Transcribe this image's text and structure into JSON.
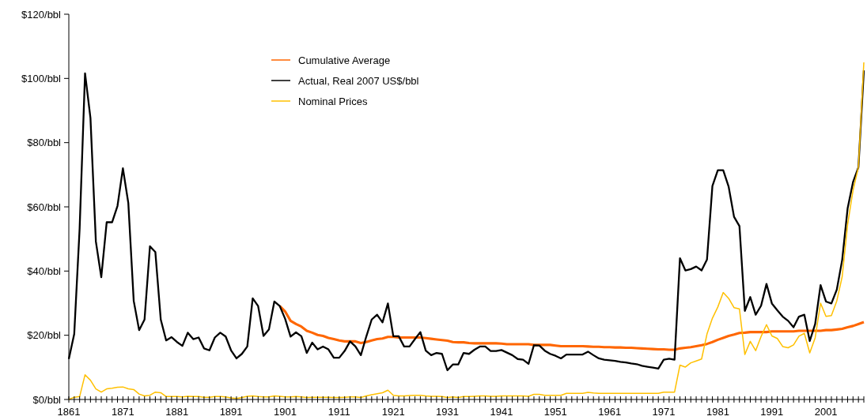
{
  "chart_data": {
    "type": "line",
    "legend": "top",
    "marker": "none",
    "line_style": "solid",
    "grid": false,
    "xlim": [
      1861,
      2008
    ],
    "ylim": [
      0,
      120
    ],
    "yticks": [
      {
        "value": 0,
        "label": "$0/bbl"
      },
      {
        "value": 20,
        "label": "$20/bbl"
      },
      {
        "value": 40,
        "label": "$40/bbl"
      },
      {
        "value": 60,
        "label": "$60/bbl"
      },
      {
        "value": 80,
        "label": "$80/bbl"
      },
      {
        "value": 100,
        "label": "$100/bbl"
      },
      {
        "value": 120,
        "label": "$120/bbl"
      }
    ],
    "xticks": [
      1861,
      {
        "value": 1862,
        "label": null
      },
      {
        "value": 1863,
        "label": null
      },
      {
        "value": 1864,
        "label": null
      },
      {
        "value": 1865,
        "label": null
      },
      {
        "value": 1866,
        "label": null
      },
      {
        "value": 1867,
        "label": null
      },
      {
        "value": 1868,
        "label": null
      },
      {
        "value": 1869,
        "label": null
      },
      {
        "value": 1870,
        "label": null
      },
      1871,
      {
        "value": 1872,
        "label": null
      },
      {
        "value": 1873,
        "label": null
      },
      {
        "value": 1874,
        "label": null
      },
      {
        "value": 1875,
        "label": null
      },
      {
        "value": 1876,
        "label": null
      },
      {
        "value": 1877,
        "label": null
      },
      {
        "value": 1878,
        "label": null
      },
      {
        "value": 1879,
        "label": null
      },
      {
        "value": 1880,
        "label": null
      },
      1881,
      {
        "value": 1882,
        "label": null
      },
      {
        "value": 1883,
        "label": null
      },
      {
        "value": 1884,
        "label": null
      },
      {
        "value": 1885,
        "label": null
      },
      {
        "value": 1886,
        "label": null
      },
      {
        "value": 1887,
        "label": null
      },
      {
        "value": 1888,
        "label": null
      },
      {
        "value": 1889,
        "label": null
      },
      {
        "value": 1890,
        "label": null
      },
      1891,
      {
        "value": 1892,
        "label": null
      },
      {
        "value": 1893,
        "label": null
      },
      {
        "value": 1894,
        "label": null
      },
      {
        "value": 1895,
        "label": null
      },
      {
        "value": 1896,
        "label": null
      },
      {
        "value": 1897,
        "label": null
      },
      {
        "value": 1898,
        "label": null
      },
      {
        "value": 1899,
        "label": null
      },
      {
        "value": 1900,
        "label": null
      },
      1901,
      {
        "value": 1902,
        "label": null
      },
      {
        "value": 1903,
        "label": null
      },
      {
        "value": 1904,
        "label": null
      },
      {
        "value": 1905,
        "label": null
      },
      {
        "value": 1906,
        "label": null
      },
      {
        "value": 1907,
        "label": null
      },
      {
        "value": 1908,
        "label": null
      },
      {
        "value": 1909,
        "label": null
      },
      {
        "value": 1910,
        "label": null
      },
      1911,
      {
        "value": 1912,
        "label": null
      },
      {
        "value": 1913,
        "label": null
      },
      {
        "value": 1914,
        "label": null
      },
      {
        "value": 1915,
        "label": null
      },
      {
        "value": 1916,
        "label": null
      },
      {
        "value": 1917,
        "label": null
      },
      {
        "value": 1918,
        "label": null
      },
      {
        "value": 1919,
        "label": null
      },
      {
        "value": 1920,
        "label": null
      },
      1921,
      {
        "value": 1922,
        "label": null
      },
      {
        "value": 1923,
        "label": null
      },
      {
        "value": 1924,
        "label": null
      },
      {
        "value": 1925,
        "label": null
      },
      {
        "value": 1926,
        "label": null
      },
      {
        "value": 1927,
        "label": null
      },
      {
        "value": 1928,
        "label": null
      },
      {
        "value": 1929,
        "label": null
      },
      {
        "value": 1930,
        "label": null
      },
      1931,
      {
        "value": 1932,
        "label": null
      },
      {
        "value": 1933,
        "label": null
      },
      {
        "value": 1934,
        "label": null
      },
      {
        "value": 1935,
        "label": null
      },
      {
        "value": 1936,
        "label": null
      },
      {
        "value": 1937,
        "label": null
      },
      {
        "value": 1938,
        "label": null
      },
      {
        "value": 1939,
        "label": null
      },
      {
        "value": 1940,
        "label": null
      },
      1941,
      {
        "value": 1942,
        "label": null
      },
      {
        "value": 1943,
        "label": null
      },
      {
        "value": 1944,
        "label": null
      },
      {
        "value": 1945,
        "label": null
      },
      {
        "value": 1946,
        "label": null
      },
      {
        "value": 1947,
        "label": null
      },
      {
        "value": 1948,
        "label": null
      },
      {
        "value": 1949,
        "label": null
      },
      {
        "value": 1950,
        "label": null
      },
      1951,
      {
        "value": 1952,
        "label": null
      },
      {
        "value": 1953,
        "label": null
      },
      {
        "value": 1954,
        "label": null
      },
      {
        "value": 1955,
        "label": null
      },
      {
        "value": 1956,
        "label": null
      },
      {
        "value": 1957,
        "label": null
      },
      {
        "value": 1958,
        "label": null
      },
      {
        "value": 1959,
        "label": null
      },
      {
        "value": 1960,
        "label": null
      },
      1961,
      {
        "value": 1962,
        "label": null
      },
      {
        "value": 1963,
        "label": null
      },
      {
        "value": 1964,
        "label": null
      },
      {
        "value": 1965,
        "label": null
      },
      {
        "value": 1966,
        "label": null
      },
      {
        "value": 1967,
        "label": null
      },
      {
        "value": 1968,
        "label": null
      },
      {
        "value": 1969,
        "label": null
      },
      {
        "value": 1970,
        "label": null
      },
      1971,
      {
        "value": 1972,
        "label": null
      },
      {
        "value": 1973,
        "label": null
      },
      {
        "value": 1974,
        "label": null
      },
      {
        "value": 1975,
        "label": null
      },
      {
        "value": 1976,
        "label": null
      },
      {
        "value": 1977,
        "label": null
      },
      {
        "value": 1978,
        "label": null
      },
      {
        "value": 1979,
        "label": null
      },
      {
        "value": 1980,
        "label": null
      },
      1981,
      {
        "value": 1982,
        "label": null
      },
      {
        "value": 1983,
        "label": null
      },
      {
        "value": 1984,
        "label": null
      },
      {
        "value": 1985,
        "label": null
      },
      {
        "value": 1986,
        "label": null
      },
      {
        "value": 1987,
        "label": null
      },
      {
        "value": 1988,
        "label": null
      },
      {
        "value": 1989,
        "label": null
      },
      {
        "value": 1990,
        "label": null
      },
      1991,
      {
        "value": 1992,
        "label": null
      },
      {
        "value": 1993,
        "label": null
      },
      {
        "value": 1994,
        "label": null
      },
      {
        "value": 1995,
        "label": null
      },
      {
        "value": 1996,
        "label": null
      },
      {
        "value": 1997,
        "label": null
      },
      {
        "value": 1998,
        "label": null
      },
      {
        "value": 1999,
        "label": null
      },
      {
        "value": 2000,
        "label": null
      },
      2001,
      {
        "value": 2002,
        "label": null
      },
      {
        "value": 2003,
        "label": null
      },
      {
        "value": 2004,
        "label": null
      },
      {
        "value": 2005,
        "label": null
      },
      {
        "value": 2006,
        "label": null
      },
      {
        "value": 2007,
        "label": null
      },
      {
        "value": 2008,
        "label": null
      }
    ],
    "x": [
      1861,
      1862,
      1863,
      1864,
      1865,
      1866,
      1867,
      1868,
      1869,
      1870,
      1871,
      1872,
      1873,
      1874,
      1875,
      1876,
      1877,
      1878,
      1879,
      1880,
      1881,
      1882,
      1883,
      1884,
      1885,
      1886,
      1887,
      1888,
      1889,
      1890,
      1891,
      1892,
      1893,
      1894,
      1895,
      1896,
      1897,
      1898,
      1899,
      1900,
      1901,
      1902,
      1903,
      1904,
      1905,
      1906,
      1907,
      1908,
      1909,
      1910,
      1911,
      1912,
      1913,
      1914,
      1915,
      1916,
      1917,
      1918,
      1919,
      1920,
      1921,
      1922,
      1923,
      1924,
      1925,
      1926,
      1927,
      1928,
      1929,
      1930,
      1931,
      1932,
      1933,
      1934,
      1935,
      1936,
      1937,
      1938,
      1939,
      1940,
      1941,
      1942,
      1943,
      1944,
      1945,
      1946,
      1947,
      1948,
      1949,
      1950,
      1951,
      1952,
      1953,
      1954,
      1955,
      1956,
      1957,
      1958,
      1959,
      1960,
      1961,
      1962,
      1963,
      1964,
      1965,
      1966,
      1967,
      1968,
      1969,
      1970,
      1971,
      1972,
      1973,
      1974,
      1975,
      1976,
      1977,
      1978,
      1979,
      1980,
      1981,
      1982,
      1983,
      1984,
      1985,
      1986,
      1987,
      1988,
      1989,
      1990,
      1991,
      1992,
      1993,
      1994,
      1995,
      1996,
      1997,
      1998,
      1999,
      2000,
      2001,
      2002,
      2003,
      2004,
      2005,
      2006,
      2007,
      2008
    ],
    "series": [
      {
        "name": "Cumulative Average",
        "color": "#ff6600",
        "values": [
          null,
          null,
          null,
          null,
          null,
          null,
          null,
          null,
          null,
          null,
          null,
          null,
          null,
          null,
          null,
          null,
          null,
          null,
          null,
          null,
          null,
          null,
          null,
          null,
          null,
          null,
          null,
          null,
          null,
          null,
          null,
          null,
          null,
          null,
          null,
          null,
          null,
          null,
          null,
          29.1,
          27.4,
          24.5,
          23.5,
          22.7,
          21.4,
          20.8,
          20.1,
          19.8,
          19.2,
          18.8,
          18.4,
          18.1,
          18.1,
          18.1,
          17.6,
          17.9,
          18.4,
          18.8,
          19.0,
          19.5,
          19.5,
          19.3,
          19.3,
          19.3,
          19.3,
          19.3,
          19.1,
          18.9,
          18.7,
          18.5,
          18.3,
          17.9,
          17.8,
          17.8,
          17.6,
          17.5,
          17.5,
          17.5,
          17.5,
          17.5,
          17.4,
          17.2,
          17.2,
          17.2,
          17.2,
          17.2,
          17.0,
          17.0,
          17.0,
          17.0,
          16.8,
          16.6,
          16.6,
          16.6,
          16.6,
          16.6,
          16.5,
          16.4,
          16.4,
          16.3,
          16.3,
          16.2,
          16.2,
          16.1,
          16.1,
          16.0,
          15.9,
          15.8,
          15.7,
          15.6,
          15.6,
          15.5,
          15.5,
          15.9,
          16.1,
          16.3,
          16.6,
          16.9,
          17.3,
          17.9,
          18.6,
          19.2,
          19.8,
          20.2,
          20.7,
          20.8,
          21.0,
          21.0,
          21.0,
          21.0,
          21.2,
          21.2,
          21.2,
          21.2,
          21.2,
          21.4,
          21.4,
          21.4,
          21.4,
          21.4,
          21.6,
          21.6,
          21.8,
          22.0,
          22.5,
          22.9,
          23.5,
          24.1
        ]
      },
      {
        "name": "Actual, Real 2007 US$/bbl",
        "color": "#000000",
        "values": [
          12.6,
          20.4,
          53.3,
          101.6,
          87.7,
          49.2,
          38.1,
          55.2,
          55.2,
          60.3,
          72.0,
          61.2,
          30.7,
          21.6,
          24.9,
          47.7,
          45.9,
          24.9,
          18.4,
          19.4,
          17.9,
          16.7,
          20.8,
          18.8,
          19.3,
          15.9,
          15.3,
          19.3,
          20.8,
          19.6,
          15.3,
          12.8,
          14.2,
          16.5,
          31.5,
          29.1,
          19.8,
          21.8,
          30.5,
          29.1,
          25.1,
          19.6,
          20.9,
          19.7,
          14.5,
          17.7,
          15.6,
          16.5,
          15.6,
          13.0,
          13.0,
          15.1,
          18.1,
          16.5,
          13.8,
          19.6,
          24.9,
          26.4,
          24.0,
          29.9,
          19.7,
          19.7,
          16.5,
          16.5,
          18.8,
          21.0,
          15.2,
          13.8,
          14.5,
          14.2,
          9.1,
          10.9,
          10.9,
          14.5,
          14.2,
          15.5,
          16.5,
          16.5,
          15.1,
          15.1,
          15.4,
          14.6,
          13.8,
          12.6,
          12.4,
          11.1,
          16.9,
          16.8,
          15.2,
          14.2,
          13.6,
          12.8,
          14.0,
          14.0,
          14.0,
          14.0,
          14.9,
          13.8,
          12.8,
          12.4,
          12.2,
          12.0,
          11.7,
          11.5,
          11.2,
          11.0,
          10.5,
          10.2,
          9.9,
          9.6,
          12.4,
          12.7,
          12.4,
          44.0,
          40.2,
          40.6,
          41.4,
          40.2,
          43.6,
          66.5,
          71.4,
          71.4,
          66.3,
          56.9,
          54.0,
          27.6,
          31.9,
          26.4,
          29.2,
          36.0,
          29.9,
          27.8,
          25.8,
          24.5,
          22.5,
          25.8,
          26.4,
          18.2,
          23.5,
          35.6,
          30.5,
          29.9,
          34.2,
          43.5,
          59.5,
          67.7,
          72.3,
          102.5
        ]
      },
      {
        "name": "Nominal Prices",
        "color": "#ffc000",
        "values": [
          0.0,
          0.7,
          0.9,
          7.7,
          6.0,
          3.3,
          2.3,
          3.3,
          3.5,
          3.8,
          3.9,
          3.3,
          3.1,
          1.7,
          1.1,
          1.3,
          2.3,
          2.1,
          0.9,
          0.9,
          0.9,
          0.8,
          1.0,
          0.9,
          0.9,
          0.7,
          0.7,
          0.9,
          0.9,
          0.8,
          0.5,
          0.3,
          0.6,
          1.0,
          1.1,
          0.9,
          0.8,
          0.8,
          1.1,
          1.0,
          0.8,
          0.8,
          0.9,
          0.8,
          0.6,
          0.7,
          0.7,
          0.7,
          0.7,
          0.6,
          0.6,
          0.7,
          0.8,
          0.8,
          0.6,
          1.1,
          1.5,
          1.8,
          2.1,
          2.9,
          1.3,
          1.1,
          1.1,
          1.2,
          1.3,
          1.3,
          1.1,
          1.0,
          1.0,
          0.9,
          0.6,
          0.8,
          0.6,
          0.9,
          0.9,
          1.0,
          1.1,
          1.1,
          1.0,
          1.0,
          1.1,
          1.1,
          1.1,
          1.1,
          1.1,
          1.0,
          1.6,
          1.6,
          1.3,
          1.3,
          1.3,
          1.3,
          1.9,
          1.9,
          1.9,
          1.9,
          2.2,
          2.0,
          1.9,
          1.9,
          1.9,
          1.9,
          1.9,
          1.9,
          1.9,
          1.9,
          1.9,
          1.9,
          1.9,
          1.9,
          2.3,
          2.3,
          2.3,
          10.7,
          10.1,
          11.4,
          12.0,
          12.6,
          20.4,
          25.3,
          28.8,
          33.3,
          31.5,
          28.6,
          28.2,
          14.0,
          18.1,
          15.2,
          19.6,
          23.3,
          19.8,
          19.0,
          16.5,
          16.1,
          17.0,
          19.7,
          20.6,
          14.5,
          19.2,
          30.0,
          25.9,
          26.1,
          30.7,
          38.3,
          54.5,
          65.1,
          72.4,
          105.0
        ]
      }
    ]
  }
}
